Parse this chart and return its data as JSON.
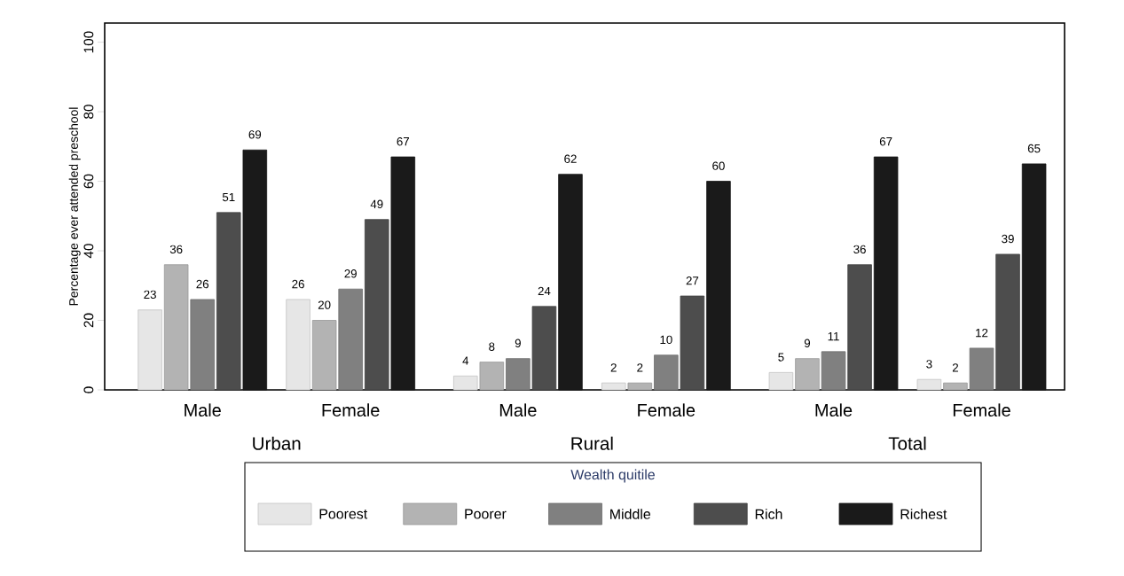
{
  "chart_data": {
    "type": "bar",
    "ylabel": "Percentage ever attended preschool",
    "legend_title": "Wealth quitile",
    "legend": "bottom",
    "data_labels": true,
    "categories": [
      "Male",
      "Female",
      "Male",
      "Female",
      "Male",
      "Female"
    ],
    "annotations": [
      "Urban",
      "Rural",
      "Total"
    ],
    "ylim": [
      0,
      105.5
    ],
    "yticks": [
      0,
      20,
      40,
      60,
      80,
      100
    ],
    "series": [
      {
        "name": "Poorest",
        "color": "#e6e6e6",
        "values": [
          23,
          26,
          4,
          2,
          5,
          3
        ]
      },
      {
        "name": "Poorer",
        "color": "#b3b3b3",
        "values": [
          36,
          20,
          8,
          2,
          9,
          2
        ]
      },
      {
        "name": "Middle",
        "color": "#808080",
        "values": [
          26,
          29,
          9,
          10,
          11,
          12
        ]
      },
      {
        "name": "Rich",
        "color": "#4d4d4d",
        "values": [
          51,
          49,
          24,
          27,
          36,
          39
        ]
      },
      {
        "name": "Richest",
        "color": "#1a1a1a",
        "values": [
          69,
          67,
          62,
          60,
          67,
          65
        ]
      }
    ]
  }
}
